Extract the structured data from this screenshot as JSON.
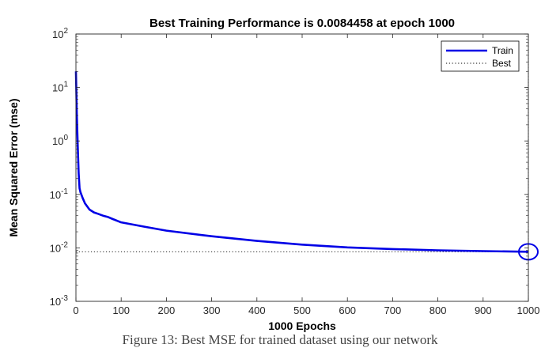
{
  "chart_data": {
    "type": "line",
    "title": "Best Training Performance is 0.0084458 at epoch 1000",
    "xlabel": "1000 Epochs",
    "ylabel": "Mean Squared Error  (mse)",
    "xlim": [
      0,
      1000
    ],
    "ylim": [
      0.001,
      100
    ],
    "yscale": "log",
    "x_ticks": [
      0,
      100,
      200,
      300,
      400,
      500,
      600,
      700,
      800,
      900,
      1000
    ],
    "y_ticks": [
      {
        "value": 0.001,
        "base": "10",
        "exp": "-3"
      },
      {
        "value": 0.01,
        "base": "10",
        "exp": "-2"
      },
      {
        "value": 0.1,
        "base": "10",
        "exp": "-1"
      },
      {
        "value": 1,
        "base": "10",
        "exp": "0"
      },
      {
        "value": 10,
        "base": "10",
        "exp": "1"
      },
      {
        "value": 100,
        "base": "10",
        "exp": "2"
      }
    ],
    "legend_position": "top-right",
    "series": [
      {
        "name": "Train",
        "color": "#0000e6",
        "style": "solid",
        "x": [
          0,
          2,
          4,
          6,
          8,
          10,
          15,
          20,
          30,
          40,
          50,
          60,
          70,
          80,
          100,
          150,
          200,
          300,
          400,
          500,
          600,
          700,
          800,
          900,
          1000
        ],
        "y": [
          20,
          3,
          0.8,
          0.25,
          0.13,
          0.11,
          0.085,
          0.068,
          0.052,
          0.046,
          0.043,
          0.04,
          0.038,
          0.035,
          0.03,
          0.025,
          0.021,
          0.0165,
          0.0135,
          0.0115,
          0.0102,
          0.0095,
          0.009,
          0.0087,
          0.0084458
        ]
      },
      {
        "name": "Best",
        "color": "#000000",
        "style": "dotted",
        "y_constant": 0.0084458
      }
    ],
    "best_marker": {
      "x": 1000,
      "y": 0.0084458,
      "color": "#0000e6"
    },
    "best_vline_x": 1000
  },
  "caption_fragment": "Figure 13: Best MSE for trained dataset using our network"
}
